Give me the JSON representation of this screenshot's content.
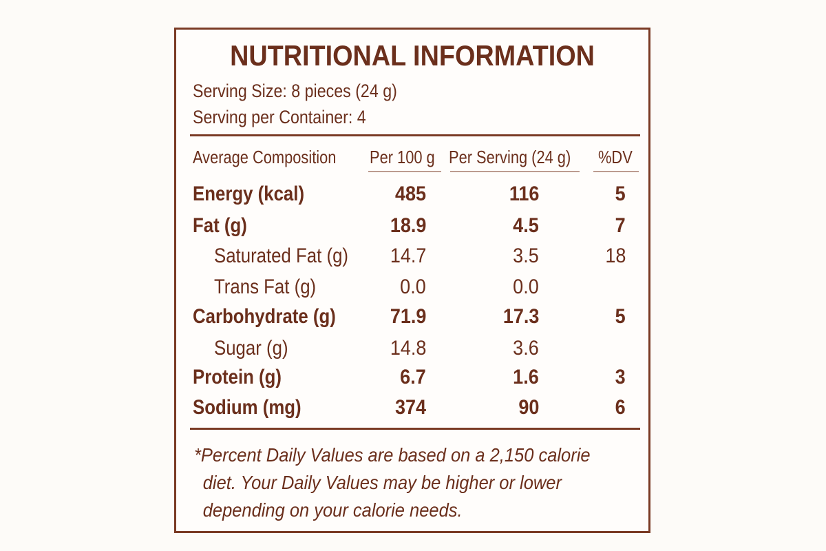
{
  "label": {
    "title": "NUTRITIONAL INFORMATION",
    "serving_size": "Serving Size: 8 pieces (24 g)",
    "servings_per_container": "Serving per Container:  4",
    "columns": {
      "composition": "Average Composition",
      "per_100g": "Per 100 g",
      "per_serving": "Per Serving (24 g)",
      "dv": "%DV"
    },
    "rows": [
      {
        "name": "Energy (kcal)",
        "per_100g": "485",
        "per_serving": "116",
        "dv": "5",
        "style": "bold"
      },
      {
        "name": "Fat (g)",
        "per_100g": "18.9",
        "per_serving": "4.5",
        "dv": "7",
        "style": "bold"
      },
      {
        "name": "Saturated Fat (g)",
        "per_100g": "14.7",
        "per_serving": "3.5",
        "dv": "18",
        "style": "sub"
      },
      {
        "name": "Trans Fat (g)",
        "per_100g": "0.0",
        "per_serving": "0.0",
        "dv": "",
        "style": "sub"
      },
      {
        "name": "Carbohydrate (g)",
        "per_100g": "71.9",
        "per_serving": "17.3",
        "dv": "5",
        "style": "bold"
      },
      {
        "name": "Sugar (g)",
        "per_100g": "14.8",
        "per_serving": "3.6",
        "dv": "",
        "style": "sub"
      },
      {
        "name": "Protein (g)",
        "per_100g": "6.7",
        "per_serving": "1.6",
        "dv": "3",
        "style": "bold"
      },
      {
        "name": "Sodium (mg)",
        "per_100g": "374",
        "per_serving": "90",
        "dv": "6",
        "style": "bold"
      }
    ],
    "footnote": {
      "line1": "*Percent Daily Values are based on a 2,150 calorie",
      "line2": "diet. Your Daily Values may be higher or lower",
      "line3": "depending on your calorie needs."
    }
  },
  "colors": {
    "text": "#6b2f1c",
    "border": "#7a3a24",
    "background": "#fdfbf8"
  }
}
